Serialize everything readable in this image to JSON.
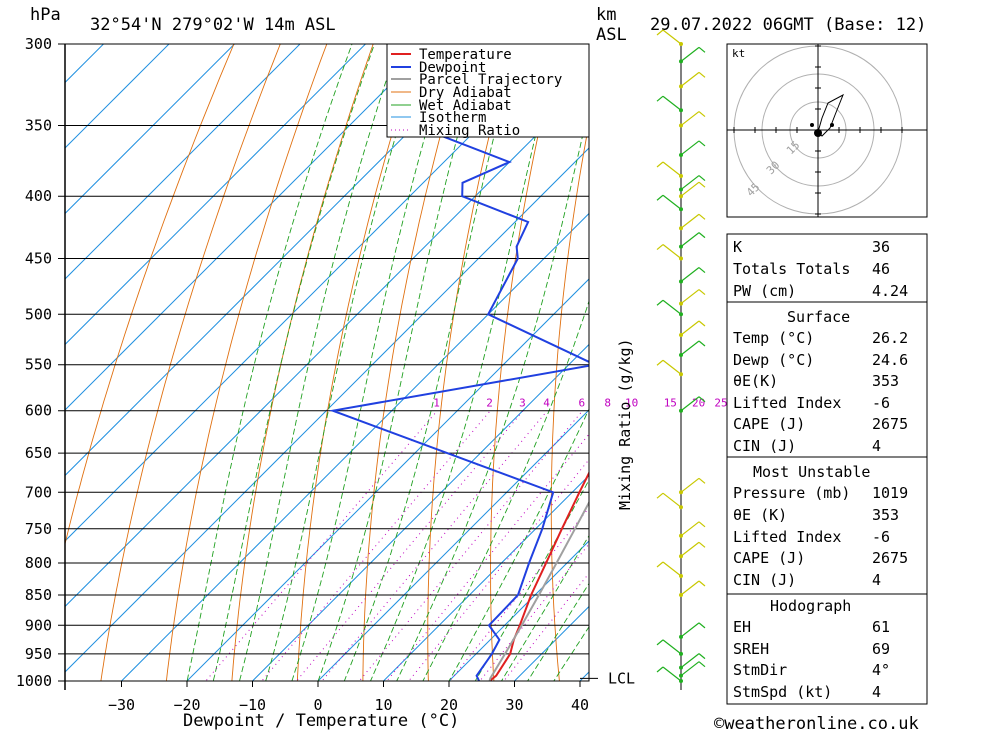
{
  "header": {
    "pressure_unit": "hPa",
    "location": "32°54'N 279°02'W 14m ASL",
    "km_label": "km",
    "asl_label": "ASL",
    "datetime": "29.07.2022 06GMT (Base: 12)"
  },
  "chart_data": {
    "type": "line",
    "title": "32°54'N 279°02'W 14m ASL",
    "xlabel": "Dewpoint / Temperature (°C)",
    "ylabel": "hPa",
    "y2label": "Mixing Ratio (g/kg)",
    "x_ticks": [
      -30,
      -20,
      -10,
      0,
      10,
      20,
      30,
      40
    ],
    "y_ticks": [
      300,
      350,
      400,
      450,
      500,
      550,
      600,
      650,
      700,
      750,
      800,
      850,
      900,
      950,
      1000
    ],
    "skew": 1.0,
    "mixing_ratio_labels": [
      "1",
      "2",
      "3",
      "4",
      "6",
      "8",
      "10",
      "15",
      "20",
      "25"
    ],
    "mixing_ratio_values": [
      1,
      2,
      3,
      4,
      6,
      8,
      10,
      15,
      20,
      25
    ],
    "lcl_label": "LCL",
    "lcl_pressure": 995,
    "legend": [
      "Temperature",
      "Dewpoint",
      "Parcel Trajectory",
      "Dry Adiabat",
      "Wet Adiabat",
      "Isotherm",
      "Mixing Ratio"
    ],
    "series": [
      {
        "name": "Temperature",
        "color": "#e02020",
        "points": [
          [
            1000,
            26.2
          ],
          [
            990,
            26.4
          ],
          [
            950,
            25.2
          ],
          [
            925,
            23.6
          ],
          [
            900,
            22.3
          ],
          [
            850,
            19.4
          ],
          [
            800,
            16.8
          ],
          [
            750,
            14.0
          ],
          [
            700,
            11.1
          ],
          [
            650,
            8.1
          ],
          [
            600,
            4.9
          ],
          [
            550,
            1.4
          ],
          [
            500,
            -2.6
          ],
          [
            450,
            -7.4
          ],
          [
            400,
            -13.1
          ],
          [
            375,
            -16.4
          ],
          [
            350,
            -20.5
          ],
          [
            325,
            -25.3
          ],
          [
            300,
            -30.6
          ]
        ]
      },
      {
        "name": "Dewpoint",
        "color": "#2040e0",
        "points": [
          [
            1000,
            24.6
          ],
          [
            990,
            23.4
          ],
          [
            950,
            22.4
          ],
          [
            925,
            21.4
          ],
          [
            900,
            17.6
          ],
          [
            850,
            17.4
          ],
          [
            800,
            14.2
          ],
          [
            750,
            11.0
          ],
          [
            700,
            7.1
          ],
          [
            600,
            -39.0
          ],
          [
            550,
            -6.0
          ],
          [
            500,
            -30.0
          ],
          [
            450,
            -34.0
          ],
          [
            440,
            -36.0
          ],
          [
            420,
            -38.0
          ],
          [
            400,
            -52.0
          ],
          [
            390,
            -54.0
          ],
          [
            375,
            -50.0
          ],
          [
            350,
            -70.0
          ],
          [
            325,
            -65.0
          ],
          [
            310,
            -80.0
          ],
          [
            300,
            -78.0
          ]
        ]
      },
      {
        "name": "Parcel Trajectory",
        "color": "#a0a0a0",
        "points": [
          [
            1000,
            26.2
          ],
          [
            995,
            25.9
          ],
          [
            950,
            24.4
          ],
          [
            900,
            22.6
          ],
          [
            850,
            20.6
          ],
          [
            800,
            18.4
          ],
          [
            750,
            16.0
          ],
          [
            700,
            13.4
          ],
          [
            650,
            10.6
          ],
          [
            600,
            7.6
          ],
          [
            550,
            4.2
          ],
          [
            500,
            0.3
          ],
          [
            450,
            -4.3
          ],
          [
            400,
            -9.9
          ],
          [
            370,
            -13.8
          ]
        ]
      }
    ]
  },
  "hodograph": {
    "unit": "kt",
    "rings": [
      "15",
      "30",
      "45"
    ]
  },
  "indices": {
    "rows": [
      {
        "label": "K",
        "value": "36"
      },
      {
        "label": "Totals Totals",
        "value": "46"
      },
      {
        "label": "PW (cm)",
        "value": "4.24"
      }
    ]
  },
  "surface": {
    "title": "Surface",
    "rows": [
      {
        "label": "Temp (°C)",
        "value": "26.2"
      },
      {
        "label": "Dewp (°C)",
        "value": "24.6"
      },
      {
        "label": "θE(K)",
        "value": "353"
      },
      {
        "label": "Lifted Index",
        "value": "-6"
      },
      {
        "label": "CAPE (J)",
        "value": "2675"
      },
      {
        "label": "CIN (J)",
        "value": "4"
      }
    ]
  },
  "most_unstable": {
    "title": "Most Unstable",
    "rows": [
      {
        "label": "Pressure (mb)",
        "value": "1019"
      },
      {
        "label": "θE (K)",
        "value": "353"
      },
      {
        "label": "Lifted Index",
        "value": "-6"
      },
      {
        "label": "CAPE (J)",
        "value": "2675"
      },
      {
        "label": "CIN (J)",
        "value": "4"
      }
    ]
  },
  "hodograph_params": {
    "title": "Hodograph",
    "rows": [
      {
        "label": "EH",
        "value": "61"
      },
      {
        "label": "SREH",
        "value": "69"
      },
      {
        "label": "StmDir",
        "value": "4°"
      },
      {
        "label": "StmSpd (kt)",
        "value": "4"
      }
    ]
  },
  "footer": {
    "copyright": "©weatheronline.co.uk"
  }
}
